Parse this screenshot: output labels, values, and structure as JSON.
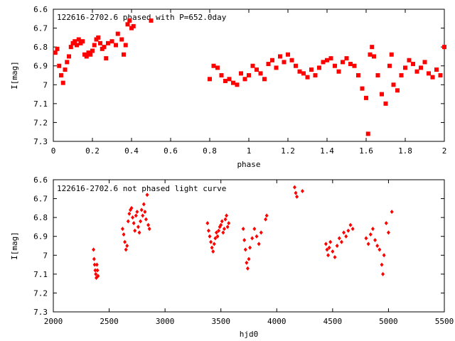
{
  "chart_data": [
    {
      "type": "scatter",
      "title": "122616-2702.6 phased with P=652.0day",
      "xlabel": "phase",
      "ylabel": "I[mag]",
      "xlim": [
        0,
        2
      ],
      "ylim": [
        6.6,
        7.3
      ],
      "y_inverted": true,
      "grid": false,
      "marker_color": "#ff0000",
      "marker": "square",
      "x_ticks": [
        0,
        0.2,
        0.4,
        0.6,
        0.8,
        1,
        1.2,
        1.4,
        1.6,
        1.8,
        2
      ],
      "y_ticks": [
        6.6,
        6.7,
        6.8,
        6.9,
        7,
        7.1,
        7.2,
        7.3
      ],
      "series": [
        {
          "x": [
            0.01,
            0.02,
            0.03,
            0.04,
            0.05,
            0.06,
            0.07,
            0.08,
            0.09,
            0.1,
            0.11,
            0.12,
            0.13,
            0.14,
            0.15,
            0.16,
            0.17,
            0.18,
            0.19,
            0.2,
            0.21,
            0.22,
            0.23,
            0.24,
            0.25,
            0.26,
            0.27,
            0.28,
            0.3,
            0.32,
            0.33,
            0.35,
            0.36,
            0.37,
            0.38,
            0.39,
            0.4,
            0.41,
            0.5,
            0.8,
            0.82,
            0.84,
            0.86,
            0.88,
            0.9,
            0.92,
            0.94,
            0.96,
            0.98,
            1.0,
            1.02,
            1.04,
            1.06,
            1.08,
            1.1,
            1.12,
            1.14,
            1.16,
            1.18,
            1.2,
            1.22,
            1.24,
            1.26,
            1.28,
            1.3,
            1.32,
            1.34,
            1.36,
            1.38,
            1.4,
            1.42,
            1.44,
            1.46,
            1.48,
            1.5,
            1.52,
            1.54,
            1.56,
            1.58,
            1.6,
            1.61,
            1.62,
            1.63,
            1.64,
            1.66,
            1.68,
            1.7,
            1.72,
            1.73,
            1.74,
            1.76,
            1.78,
            1.8,
            1.82,
            1.84,
            1.86,
            1.88,
            1.9,
            1.92,
            1.94,
            1.96,
            1.98,
            2.0
          ],
          "y": [
            6.83,
            6.81,
            6.9,
            6.95,
            6.99,
            6.92,
            6.88,
            6.85,
            6.8,
            6.78,
            6.77,
            6.79,
            6.76,
            6.78,
            6.77,
            6.84,
            6.85,
            6.83,
            6.84,
            6.82,
            6.79,
            6.76,
            6.75,
            6.78,
            6.81,
            6.8,
            6.86,
            6.78,
            6.77,
            6.79,
            6.73,
            6.76,
            6.84,
            6.79,
            6.68,
            6.66,
            6.7,
            6.69,
            6.66,
            6.97,
            6.9,
            6.91,
            6.95,
            6.98,
            6.97,
            6.99,
            7.0,
            6.94,
            6.97,
            6.95,
            6.9,
            6.92,
            6.94,
            6.97,
            6.89,
            6.87,
            6.91,
            6.85,
            6.88,
            6.84,
            6.87,
            6.9,
            6.93,
            6.94,
            6.96,
            6.92,
            6.95,
            6.91,
            6.88,
            6.87,
            6.86,
            6.9,
            6.93,
            6.88,
            6.86,
            6.89,
            6.9,
            6.95,
            7.02,
            7.07,
            7.26,
            6.84,
            6.8,
            6.85,
            6.95,
            7.05,
            7.1,
            6.9,
            6.84,
            7.0,
            7.03,
            6.95,
            6.91,
            6.87,
            6.89,
            6.93,
            6.91,
            6.88,
            6.94,
            6.96,
            6.92,
            6.95,
            6.8
          ]
        }
      ]
    },
    {
      "type": "scatter",
      "title": "122616-2702.6 not phased light curve",
      "xlabel": "hjd0",
      "ylabel": "I[mag]",
      "xlim": [
        2000,
        5500
      ],
      "ylim": [
        6.6,
        7.3
      ],
      "y_inverted": true,
      "grid": false,
      "marker_color": "#ff0000",
      "marker": "diamond",
      "x_ticks": [
        2000,
        2500,
        3000,
        3500,
        4000,
        4500,
        5000,
        5500
      ],
      "y_ticks": [
        6.6,
        6.7,
        6.8,
        6.9,
        7,
        7.1,
        7.2,
        7.3
      ],
      "series": [
        {
          "x": [
            2360,
            2365,
            2370,
            2375,
            2380,
            2385,
            2390,
            2395,
            2400,
            2620,
            2630,
            2640,
            2650,
            2660,
            2670,
            2680,
            2690,
            2700,
            2710,
            2720,
            2730,
            2740,
            2750,
            2760,
            2770,
            2780,
            2790,
            2800,
            2810,
            2820,
            2830,
            2840,
            2850,
            2860,
            3380,
            3390,
            3400,
            3410,
            3420,
            3430,
            3440,
            3450,
            3460,
            3470,
            3480,
            3490,
            3500,
            3510,
            3520,
            3530,
            3540,
            3550,
            3560,
            3570,
            3700,
            3710,
            3720,
            3730,
            3740,
            3750,
            3760,
            3780,
            3800,
            3820,
            3840,
            3860,
            3900,
            3910,
            4160,
            4170,
            4180,
            4230,
            4440,
            4450,
            4460,
            4470,
            4480,
            4500,
            4520,
            4540,
            4560,
            4580,
            4600,
            4620,
            4640,
            4660,
            4680,
            4800,
            4820,
            4840,
            4860,
            4880,
            4900,
            4920,
            4940,
            4950,
            4960,
            4980,
            5000,
            5030
          ],
          "y": [
            6.97,
            7.02,
            7.05,
            7.08,
            7.1,
            7.12,
            7.05,
            7.08,
            7.11,
            6.86,
            6.89,
            6.93,
            6.97,
            6.95,
            6.82,
            6.78,
            6.76,
            6.75,
            6.8,
            6.83,
            6.87,
            6.79,
            6.77,
            6.85,
            6.88,
            6.82,
            6.76,
            6.79,
            6.73,
            6.77,
            6.81,
            6.68,
            6.84,
            6.86,
            6.83,
            6.87,
            6.9,
            6.93,
            6.96,
            6.98,
            6.94,
            6.91,
            6.88,
            6.9,
            6.87,
            6.85,
            6.84,
            6.82,
            6.88,
            6.86,
            6.81,
            6.79,
            6.85,
            6.83,
            6.86,
            6.92,
            6.97,
            7.04,
            7.07,
            7.02,
            6.96,
            6.91,
            6.86,
            6.9,
            6.94,
            6.88,
            6.81,
            6.79,
            6.64,
            6.67,
            6.69,
            6.66,
            6.94,
            6.97,
            7.0,
            6.96,
            6.93,
            6.98,
            7.01,
            6.95,
            6.91,
            6.93,
            6.88,
            6.9,
            6.87,
            6.84,
            6.86,
            6.91,
            6.94,
            6.89,
            6.86,
            6.92,
            6.95,
            6.97,
            7.05,
            7.1,
            7.0,
            6.83,
            6.88,
            6.77
          ]
        }
      ]
    }
  ]
}
